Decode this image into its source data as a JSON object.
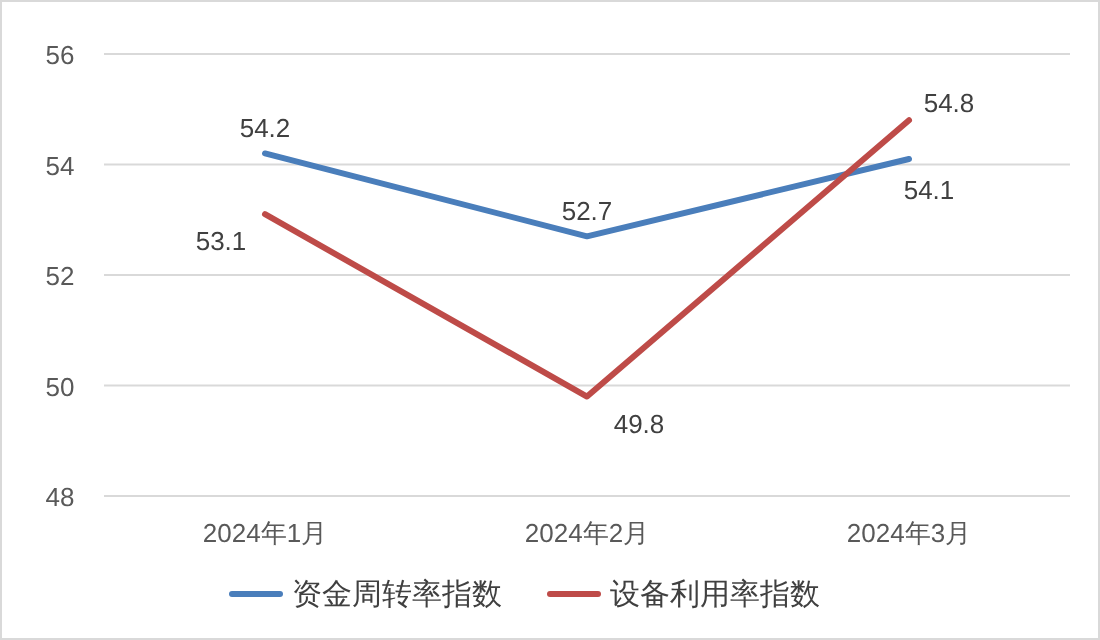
{
  "chart_data": {
    "type": "line",
    "categories": [
      "2024年1月",
      "2024年2月",
      "2024年3月"
    ],
    "series": [
      {
        "name": "资金周转率指数",
        "color": "#4a7ebb",
        "values": [
          54.2,
          52.7,
          54.1
        ]
      },
      {
        "name": "设备利用率指数",
        "color": "#be4b48",
        "values": [
          53.1,
          49.8,
          54.8
        ]
      }
    ],
    "ylim": [
      48,
      56
    ],
    "yticks": [
      48,
      50,
      52,
      54,
      56
    ],
    "grid": "y",
    "legend": "bottom",
    "data_labels": true,
    "marker": "none",
    "line_style": "solid"
  }
}
